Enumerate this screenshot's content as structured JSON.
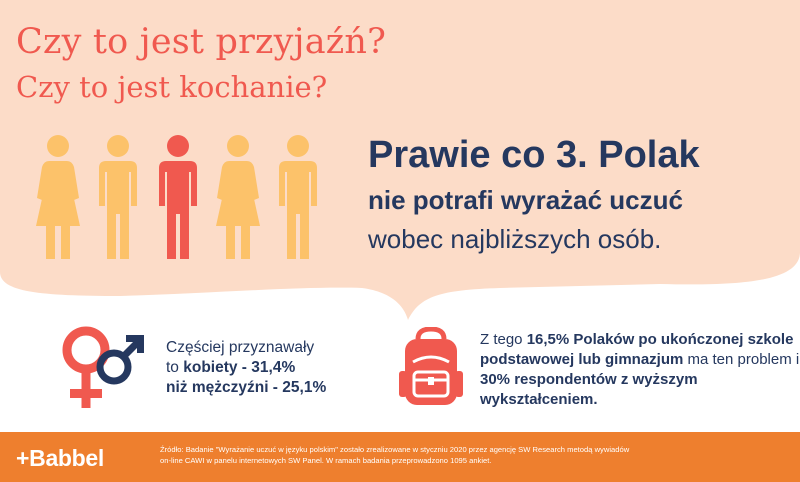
{
  "colors": {
    "peach_background": "#fcdcc8",
    "coral": "#f0594f",
    "figure_yellow": "#fcc26a",
    "figure_red": "#f0594f",
    "navy": "#25385f",
    "footer_orange": "#ee7f2e"
  },
  "title": {
    "line1": "Czy to jest przyjaźń?",
    "line2": "Czy to jest kochanie?"
  },
  "figures": {
    "order": [
      "woman",
      "man",
      "man",
      "woman",
      "man"
    ],
    "highlighted_index": 2
  },
  "headline": {
    "line1": "Prawie co 3. Polak",
    "line2": "nie potrafi wyrażać uczuć",
    "line3": "wobec najbliższych osób."
  },
  "gender_stat": {
    "icon": "gender-symbols-icon",
    "line1": "Częściej przyznawały",
    "line2_prefix": "to ",
    "line2_bold": "kobiety - 31,4%",
    "line3_bold": "niż mężczyźni - 25,1%"
  },
  "education_stat": {
    "icon": "backpack-icon",
    "p1": "Z tego ",
    "b1": "16,5% Polaków po ukończonej szkole podstawowej lub gimnazjum",
    "p2": " ma ten problem i ",
    "b2": "30% respondentów z wyższym wykształceniem.",
    "p3": ""
  },
  "footer": {
    "logo": "+Babbel",
    "source": "Źródło: Badanie \"Wyrażanie uczuć w języku polskim\" zostało zrealizowane w styczniu 2020 przez agencję SW Research metodą wywiadów on-line CAWI w panelu internetowych SW Panel. W ramach badania przeprowadzono 1095 ankiet."
  }
}
